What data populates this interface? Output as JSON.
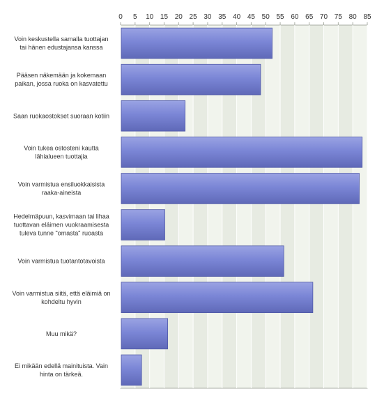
{
  "chart_data": {
    "type": "bar",
    "orientation": "horizontal",
    "categories": [
      [
        "Voin keskustella samalla tuottajan",
        "tai hänen edustajansa kanssa"
      ],
      [
        "Pääsen näkemään ja kokemaan",
        "paikan, jossa ruoka on kasvatettu"
      ],
      [
        "Saan ruokaostokset suoraan kotiin"
      ],
      [
        "Voin tukea ostosteni kautta",
        "lähialueen tuottajia"
      ],
      [
        "Voin varmistua ensiluokkaisista",
        "raaka-aineista"
      ],
      [
        "Hedelmäpuun, kasvimaan tai lihaa",
        "tuottavan eläimen vuokraamisesta",
        "tuleva tunne \"omasta\" ruoasta"
      ],
      [
        "Voin varmistua tuotantotavoista"
      ],
      [
        "Voin varmistua siitä, että eläimiä on",
        "kohdeltu hyvin"
      ],
      [
        "Muu mikä?"
      ],
      [
        "Ei mikään edellä mainituista. Vain",
        "hinta on tärkeä."
      ]
    ],
    "values": [
      52,
      48,
      22,
      83,
      82,
      15,
      56,
      66,
      16,
      7
    ],
    "xlim": [
      0,
      85
    ],
    "xticks": [
      0,
      5,
      10,
      15,
      20,
      25,
      30,
      35,
      40,
      45,
      50,
      55,
      60,
      65,
      70,
      75,
      80,
      85
    ],
    "axis_position": "top",
    "grid": true,
    "colors": {
      "bar": "#7b86d6",
      "bar_light": "#9aa3e3",
      "bar_dark": "#5f69b8",
      "bar_edge": "#4f58a6",
      "plot_bg": "#f1f4ed",
      "plot_bg_alt": "#e7ebe2",
      "grid": "#ffffff",
      "axis": "#a9aea4"
    }
  }
}
